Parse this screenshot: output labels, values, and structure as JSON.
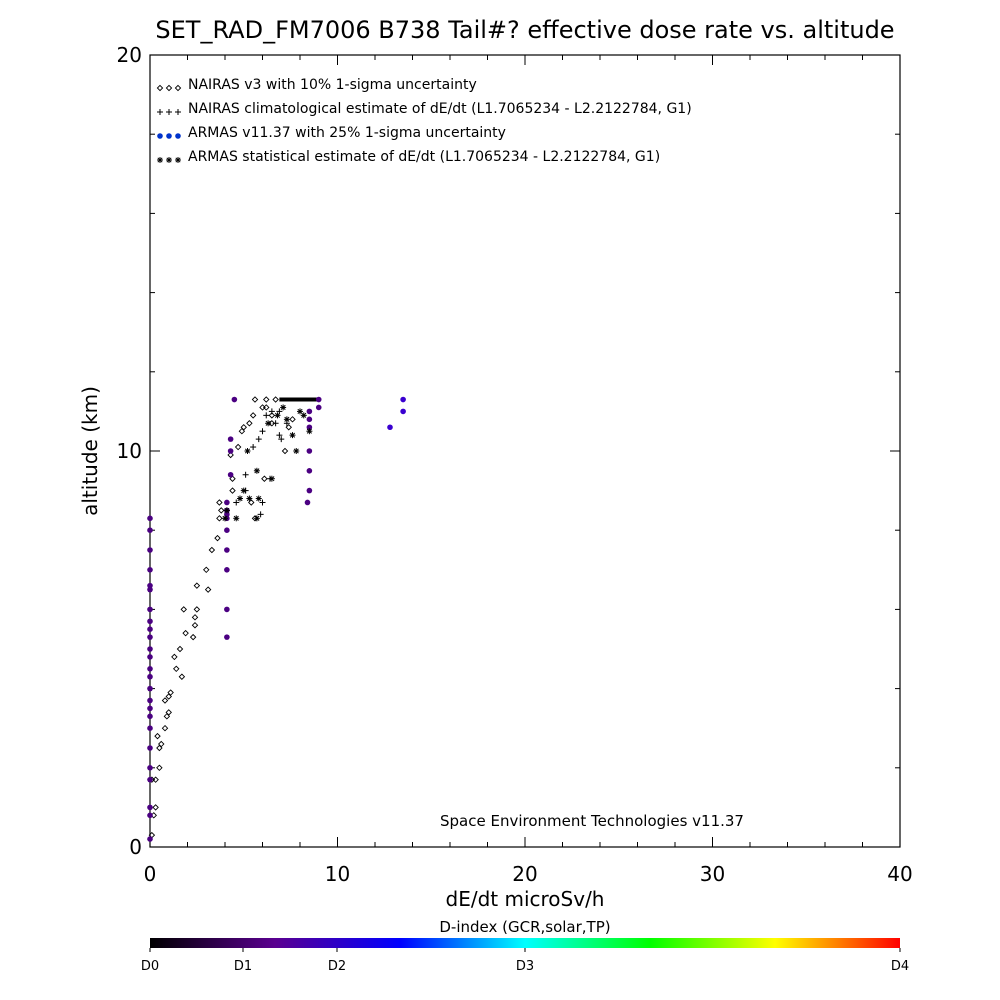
{
  "chart_data": {
    "type": "scatter",
    "title": "SET_RAD_FM7006  B738 Tail#? effective dose rate vs. altitude",
    "xlabel": "dE/dt microSv/h",
    "ylabel": "altitude (km)",
    "xlim": [
      0,
      40
    ],
    "ylim": [
      0,
      20
    ],
    "x_ticks": [
      0,
      10,
      20,
      30,
      40
    ],
    "y_ticks": [
      0,
      10,
      20
    ],
    "legend_position": "top-left",
    "credit": "Space Environment Technologies v11.37",
    "colorbar": {
      "title": "D-index (GCR,solar,TP)",
      "labels": [
        {
          "text": "D0",
          "value": 0
        },
        {
          "text": "D1",
          "value": 1
        },
        {
          "text": "D2",
          "value": 2
        },
        {
          "text": "D3",
          "value": 3
        },
        {
          "text": "D4",
          "value": 4
        }
      ],
      "colors": [
        "#000000",
        "#5a0090",
        "#0000ff",
        "#00ffff",
        "#00ff00",
        "#ffff00",
        "#ff0000"
      ]
    },
    "series": [
      {
        "name": "NAIRAS v3 with 10% 1-sigma uncertainty",
        "marker": "diamond",
        "color": "#000000",
        "points": [
          [
            0.1,
            0.3
          ],
          [
            0.2,
            0.8
          ],
          [
            0.3,
            1.0
          ],
          [
            0.1,
            1.7
          ],
          [
            0.3,
            1.7
          ],
          [
            0.5,
            2.0
          ],
          [
            0.5,
            2.5
          ],
          [
            0.6,
            2.6
          ],
          [
            0.4,
            2.8
          ],
          [
            0.8,
            3.0
          ],
          [
            0.9,
            3.3
          ],
          [
            1.0,
            3.4
          ],
          [
            0.8,
            3.7
          ],
          [
            1.0,
            3.8
          ],
          [
            1.1,
            3.9
          ],
          [
            1.7,
            4.3
          ],
          [
            1.4,
            4.5
          ],
          [
            1.3,
            4.8
          ],
          [
            1.6,
            5.0
          ],
          [
            2.3,
            5.3
          ],
          [
            1.9,
            5.4
          ],
          [
            2.4,
            5.6
          ],
          [
            2.4,
            5.8
          ],
          [
            1.8,
            6.0
          ],
          [
            2.5,
            6.0
          ],
          [
            2.5,
            6.6
          ],
          [
            3.1,
            6.5
          ],
          [
            3.0,
            7.0
          ],
          [
            3.3,
            7.5
          ],
          [
            3.6,
            7.8
          ],
          [
            3.7,
            8.3
          ],
          [
            3.8,
            8.5
          ],
          [
            3.7,
            8.7
          ],
          [
            4.4,
            9.0
          ],
          [
            4.4,
            9.3
          ],
          [
            4.3,
            9.9
          ],
          [
            4.7,
            10.1
          ],
          [
            4.9,
            10.5
          ],
          [
            5.0,
            10.6
          ],
          [
            5.3,
            10.7
          ],
          [
            5.5,
            10.9
          ],
          [
            6.0,
            11.1
          ],
          [
            6.2,
            11.3
          ],
          [
            5.6,
            11.3
          ],
          [
            6.5,
            10.9
          ],
          [
            6.5,
            10.7
          ],
          [
            7.6,
            10.8
          ],
          [
            7.4,
            10.6
          ],
          [
            7.2,
            10.0
          ],
          [
            6.1,
            9.3
          ],
          [
            5.4,
            8.7
          ],
          [
            5.6,
            8.3
          ],
          [
            6.2,
            11.1
          ],
          [
            6.7,
            11.3
          ]
        ]
      },
      {
        "name": "NAIRAS climatological estimate of dE/dt (L1.7065234 - L2.2122784, G1)",
        "marker": "plus",
        "color": "#000000",
        "points": [
          [
            4.1,
            8.5
          ],
          [
            4.6,
            8.7
          ],
          [
            5.1,
            9.0
          ],
          [
            5.1,
            9.4
          ],
          [
            5.5,
            10.1
          ],
          [
            5.8,
            10.3
          ],
          [
            6.0,
            10.5
          ],
          [
            6.2,
            10.9
          ],
          [
            6.5,
            11.0
          ],
          [
            6.9,
            11.0
          ],
          [
            6.7,
            10.7
          ],
          [
            7.3,
            10.7
          ],
          [
            6.4,
            9.3
          ],
          [
            6.0,
            8.7
          ],
          [
            5.9,
            8.4
          ],
          [
            7.0,
            10.3
          ],
          [
            6.9,
            10.4
          ]
        ]
      },
      {
        "name": "ARMAS v11.37 with 25% 1-sigma uncertainty",
        "marker": "dot",
        "color": "#4b0082",
        "points": [
          [
            0.0,
            0.2
          ],
          [
            0.0,
            0.8
          ],
          [
            0.0,
            1.0
          ],
          [
            0.0,
            1.7
          ],
          [
            0.0,
            2.0
          ],
          [
            0.0,
            2.5
          ],
          [
            0.0,
            3.0
          ],
          [
            0.0,
            3.3
          ],
          [
            0.0,
            3.5
          ],
          [
            0.0,
            3.7
          ],
          [
            0.0,
            4.0
          ],
          [
            0.0,
            4.3
          ],
          [
            0.0,
            4.5
          ],
          [
            0.0,
            4.8
          ],
          [
            0.0,
            5.0
          ],
          [
            0.0,
            5.3
          ],
          [
            0.0,
            5.5
          ],
          [
            0.0,
            5.7
          ],
          [
            0.0,
            6.0
          ],
          [
            0.0,
            6.5
          ],
          [
            0.0,
            6.6
          ],
          [
            0.0,
            7.0
          ],
          [
            0.0,
            7.5
          ],
          [
            0.0,
            8.0
          ],
          [
            0.0,
            8.3
          ],
          [
            4.1,
            5.3
          ],
          [
            4.1,
            6.0
          ],
          [
            4.1,
            7.0
          ],
          [
            4.1,
            7.5
          ],
          [
            4.1,
            8.0
          ],
          [
            4.1,
            8.3
          ],
          [
            4.1,
            8.4
          ],
          [
            4.1,
            8.5
          ],
          [
            4.1,
            8.7
          ],
          [
            4.3,
            9.4
          ],
          [
            4.3,
            10.0
          ],
          [
            4.3,
            10.3
          ],
          [
            4.5,
            11.3
          ],
          [
            8.4,
            8.7
          ],
          [
            8.5,
            9.0
          ],
          [
            8.5,
            9.5
          ],
          [
            8.5,
            10.0
          ],
          [
            8.5,
            10.6
          ],
          [
            8.5,
            10.8
          ],
          [
            8.5,
            11.0
          ],
          [
            9.0,
            11.3
          ],
          [
            9.0,
            11.1
          ],
          [
            12.8,
            10.6
          ],
          [
            13.5,
            11.0
          ],
          [
            13.5,
            11.3
          ]
        ]
      },
      {
        "name": "ARMAS statistical estimate of dE/dt (L1.7065234 - L2.2122784, G1)",
        "marker": "asterisk",
        "color": "#000000",
        "points": [
          [
            4.0,
            8.3
          ],
          [
            4.1,
            8.5
          ],
          [
            4.6,
            8.3
          ],
          [
            4.8,
            8.8
          ],
          [
            5.0,
            9.0
          ],
          [
            5.3,
            8.8
          ],
          [
            5.8,
            8.8
          ],
          [
            5.7,
            8.3
          ],
          [
            5.7,
            9.5
          ],
          [
            5.2,
            10.0
          ],
          [
            6.3,
            10.7
          ],
          [
            6.8,
            10.9
          ],
          [
            7.3,
            10.8
          ],
          [
            7.6,
            10.4
          ],
          [
            7.8,
            10.0
          ],
          [
            8.0,
            11.0
          ],
          [
            8.2,
            10.9
          ],
          [
            6.5,
            9.3
          ],
          [
            7.1,
            11.1
          ],
          [
            8.5,
            10.5
          ]
        ]
      }
    ],
    "horizontal_segment": {
      "x_from": 6.9,
      "x_to": 8.9,
      "y": 11.3,
      "color": "#000000"
    }
  }
}
